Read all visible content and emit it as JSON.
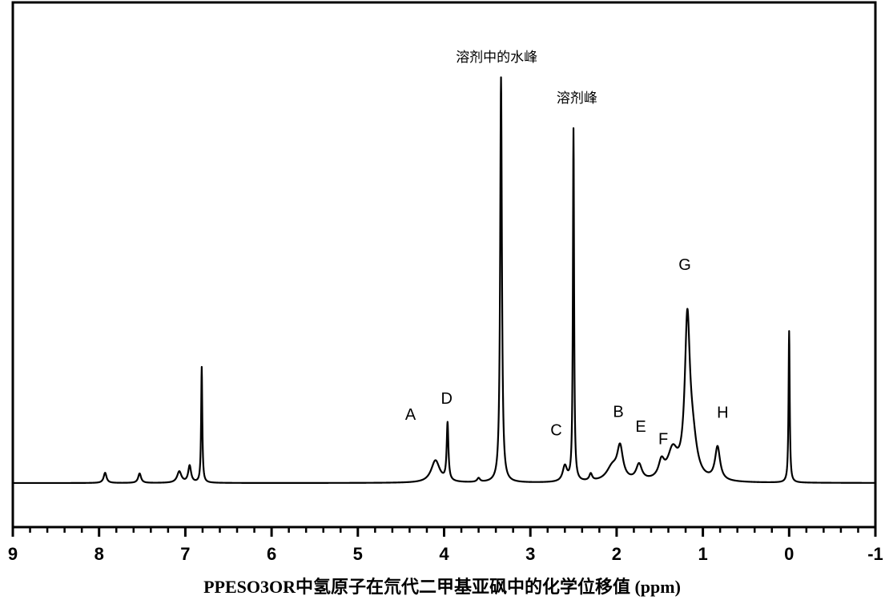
{
  "chart_data": {
    "type": "line",
    "title": "",
    "xlabel": "PPESO3OR中氢原子在氘代二甲基亚砜中的化学位移值 (ppm)",
    "ylabel": "",
    "xlim": [
      9,
      -1
    ],
    "x_reversed": true,
    "ylim": [
      0,
      100
    ],
    "grid": false,
    "x_ticks": [
      "9",
      "8",
      "7",
      "6",
      "5",
      "4",
      "3",
      "2",
      "1",
      "0",
      "-1"
    ],
    "baseline": 0,
    "series": [
      {
        "peaks": [
          {
            "ppm": 7.93,
            "height": 2.9,
            "width": 0.02
          },
          {
            "ppm": 7.53,
            "height": 2.7,
            "width": 0.02
          },
          {
            "ppm": 7.07,
            "height": 3.2,
            "width": 0.03
          },
          {
            "ppm": 6.95,
            "height": 4.8,
            "width": 0.02
          },
          {
            "ppm": 6.81,
            "height": 32.8,
            "width": 0.008
          },
          {
            "ppm": 4.1,
            "height": 6.3,
            "width": 0.06
          },
          {
            "ppm": 3.96,
            "height": 16.3,
            "width": 0.012
          },
          {
            "ppm": 3.6,
            "height": 1.1,
            "width": 0.02
          },
          {
            "ppm": 3.34,
            "height": 115.0,
            "width": 0.012
          },
          {
            "ppm": 2.6,
            "height": 4.4,
            "width": 0.03
          },
          {
            "ppm": 2.5,
            "height": 100.0,
            "width": 0.008
          },
          {
            "ppm": 2.3,
            "height": 2.0,
            "width": 0.02
          },
          {
            "ppm": 2.05,
            "height": 4.0,
            "width": 0.08
          },
          {
            "ppm": 1.96,
            "height": 9.0,
            "width": 0.04
          },
          {
            "ppm": 1.74,
            "height": 4.5,
            "width": 0.04
          },
          {
            "ppm": 1.48,
            "height": 4.6,
            "width": 0.04
          },
          {
            "ppm": 1.35,
            "height": 8.0,
            "width": 0.07
          },
          {
            "ppm": 1.18,
            "height": 43.0,
            "width": 0.035
          },
          {
            "ppm": 1.12,
            "height": 10.0,
            "width": 0.06
          },
          {
            "ppm": 0.83,
            "height": 9.5,
            "width": 0.035
          },
          {
            "ppm": 0.0,
            "height": 43.0,
            "width": 0.008
          }
        ]
      }
    ],
    "peak_labels": [
      {
        "text": "A",
        "ppm": 4.39,
        "y": 18.0
      },
      {
        "text": "D",
        "ppm": 3.97,
        "y": 22.5
      },
      {
        "text": "C",
        "ppm": 2.7,
        "y": 13.5
      },
      {
        "text": "B",
        "ppm": 1.98,
        "y": 18.8
      },
      {
        "text": "E",
        "ppm": 1.72,
        "y": 14.5
      },
      {
        "text": "F",
        "ppm": 1.46,
        "y": 11.0
      },
      {
        "text": "G",
        "ppm": 1.21,
        "y": 60.5
      },
      {
        "text": "H",
        "ppm": 0.77,
        "y": 18.5
      }
    ],
    "annotations": [
      {
        "text": "溶剂中的水峰",
        "ppm": 3.39,
        "y": 119.5
      },
      {
        "text": "溶剂峰",
        "ppm": 2.46,
        "y": 108.0
      }
    ]
  },
  "colors": {
    "line": "#000000",
    "axis": "#000000",
    "background": "#ffffff"
  }
}
